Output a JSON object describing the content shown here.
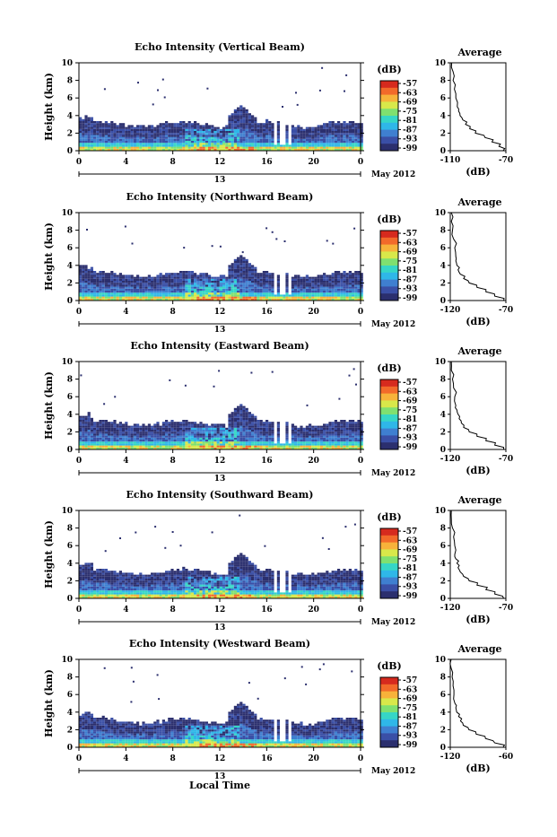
{
  "figure": {
    "xlabel": "Local Time",
    "ylabel": "Height (km)",
    "day_label": "13",
    "month_label": "May 2012",
    "x_ticks": [
      "0",
      "4",
      "8",
      "12",
      "16",
      "20",
      "0"
    ],
    "y_ticks": [
      "0",
      "2",
      "4",
      "6",
      "8",
      "10"
    ],
    "colorbar_title": "(dB)",
    "colorbar_ticks": [
      "-57",
      "-63",
      "-69",
      "-75",
      "-81",
      "-87",
      "-93",
      "-99"
    ],
    "avg_title": "Average",
    "avg_xlabel": "(dB)",
    "colors": {
      "colormap": [
        "#2b2f6e",
        "#3a4fa6",
        "#3f7fd0",
        "#2fb7e8",
        "#36d6c6",
        "#7fe070",
        "#d8e84a",
        "#f7b23a",
        "#f26a2a",
        "#d62a1e"
      ]
    }
  },
  "chart_data": [
    {
      "type": "heatmap",
      "title": "Echo Intensity (Vertical Beam)",
      "xlim": [
        0,
        24
      ],
      "ylim": [
        0,
        10
      ],
      "zlim": [
        -99,
        -57
      ],
      "avg_profile": {
        "xlim": [
          -110,
          -70
        ],
        "x_ticks": [
          "-110",
          "-70"
        ],
        "height": [
          0,
          0.5,
          1,
          1.5,
          2,
          2.5,
          3,
          3.5,
          4,
          4.5,
          5,
          6,
          7,
          8,
          9,
          10
        ],
        "db": [
          -72,
          -75,
          -80,
          -85,
          -92,
          -96,
          -99,
          -101,
          -103,
          -104,
          -105,
          -106,
          -107,
          -108,
          -108,
          -109
        ]
      }
    },
    {
      "type": "heatmap",
      "title": "Echo Intensity (Northward Beam)",
      "xlim": [
        0,
        24
      ],
      "ylim": [
        0,
        10
      ],
      "zlim": [
        -99,
        -57
      ],
      "avg_profile": {
        "xlim": [
          -120,
          -70
        ],
        "x_ticks": [
          "-120",
          "-70"
        ],
        "height": [
          0,
          0.5,
          1,
          1.5,
          2,
          2.5,
          3,
          3.5,
          4,
          4.5,
          5,
          6,
          7,
          8,
          9,
          10
        ],
        "db": [
          -72,
          -80,
          -88,
          -96,
          -103,
          -108,
          -111,
          -113,
          -114,
          -115,
          -115,
          -116,
          -117,
          -118,
          -119,
          -119
        ]
      }
    },
    {
      "type": "heatmap",
      "title": "Echo Intensity (Eastward Beam)",
      "xlim": [
        0,
        24
      ],
      "ylim": [
        0,
        10
      ],
      "zlim": [
        -99,
        -57
      ],
      "avg_profile": {
        "xlim": [
          -120,
          -70
        ],
        "x_ticks": [
          "-120",
          "-70"
        ],
        "height": [
          0,
          0.5,
          1,
          1.5,
          2,
          2.5,
          3,
          3.5,
          4,
          4.5,
          5,
          6,
          7,
          8,
          9,
          10
        ],
        "db": [
          -72,
          -80,
          -88,
          -96,
          -103,
          -108,
          -110,
          -112,
          -113,
          -114,
          -115,
          -116,
          -117,
          -118,
          -119,
          -119
        ]
      }
    },
    {
      "type": "heatmap",
      "title": "Echo Intensity (Southward Beam)",
      "xlim": [
        0,
        24
      ],
      "ylim": [
        0,
        10
      ],
      "zlim": [
        -99,
        -57
      ],
      "avg_profile": {
        "xlim": [
          -120,
          -70
        ],
        "x_ticks": [
          "-120",
          "-70"
        ],
        "height": [
          0,
          0.5,
          1,
          1.5,
          2,
          2.5,
          3,
          3.5,
          4,
          4.5,
          5,
          6,
          7,
          8,
          9,
          10
        ],
        "db": [
          -72,
          -80,
          -88,
          -96,
          -103,
          -108,
          -111,
          -113,
          -114,
          -115,
          -116,
          -116,
          -117,
          -118,
          -119,
          -119
        ]
      }
    },
    {
      "type": "heatmap",
      "title": "Echo Intensity (Westward Beam)",
      "xlim": [
        0,
        24
      ],
      "ylim": [
        0,
        10
      ],
      "zlim": [
        -99,
        -57
      ],
      "avg_profile": {
        "xlim": [
          -120,
          -60
        ],
        "x_ticks": [
          "-120",
          "-60"
        ],
        "height": [
          0,
          0.5,
          1,
          1.5,
          2,
          2.5,
          3,
          3.5,
          4,
          4.5,
          5,
          6,
          7,
          8,
          9,
          10
        ],
        "db": [
          -63,
          -72,
          -82,
          -92,
          -100,
          -106,
          -109,
          -111,
          -113,
          -114,
          -115,
          -116,
          -117,
          -118,
          -119,
          -119
        ]
      }
    }
  ]
}
